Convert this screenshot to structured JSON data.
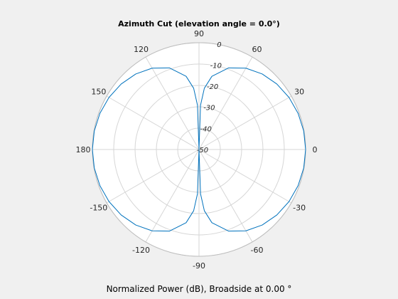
{
  "chart_data": {
    "type": "polar-line",
    "title": "Azimuth Cut (elevation angle = 0.0°)",
    "xlabel": "Normalized Power (dB), Broadside at 0.00 °",
    "theta_ticks": [
      "0",
      "30",
      "60",
      "90",
      "120",
      "150",
      "180",
      "-150",
      "-120",
      "-90",
      "-60",
      "-30"
    ],
    "theta_tick_values_deg": [
      0,
      30,
      60,
      90,
      120,
      150,
      180,
      210,
      240,
      270,
      300,
      330
    ],
    "r_ticks": [
      "0",
      "-10",
      "-20",
      "-30",
      "-40",
      "-50"
    ],
    "r_tick_values": [
      0,
      -10,
      -20,
      -30,
      -40,
      -50
    ],
    "r_range": [
      -50,
      0
    ],
    "grid": true,
    "series": [
      {
        "color": "#0072bd",
        "pattern": "cos^2(azimuth)",
        "theta_deg": [
          0,
          10,
          20,
          30,
          40,
          50,
          60,
          70,
          80,
          85,
          88,
          90,
          92,
          95,
          100,
          110,
          120,
          130,
          140,
          150,
          160,
          170,
          180
        ],
        "values_db": [
          0,
          -0.13,
          -0.54,
          -1.25,
          -2.32,
          -3.84,
          -6.02,
          -9.32,
          -15.2,
          -21.2,
          -29.2,
          -50,
          -29.2,
          -21.2,
          -15.2,
          -9.32,
          -6.02,
          -3.84,
          -2.32,
          -1.25,
          -0.54,
          -0.13,
          0
        ],
        "symmetric": true
      }
    ]
  }
}
